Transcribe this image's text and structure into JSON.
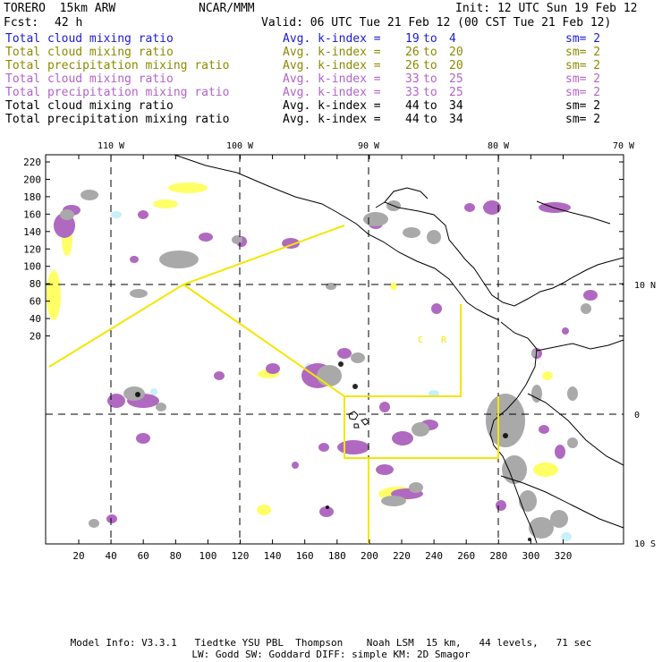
{
  "header": {
    "title": "TORERO  15km ARW",
    "org": "NCAR/MMM",
    "init": "Init: 12 UTC Sun 19 Feb 12",
    "fcst_label": "Fcst:",
    "fcst_value": "42 h",
    "valid": "Valid: 06 UTC Tue 21 Feb 12 (00 CST Tue 21 Feb 12)"
  },
  "colors": {
    "blue": "#1a1ad9",
    "olive": "#8a8a00",
    "violet": "#b463c8",
    "black": "#000000",
    "cloud_gray": "#a9a9a9",
    "precip_violet": "#b069c0",
    "yellow_fill": "#ffff66",
    "cyan_fill": "#c8f0f8",
    "box_line": "#f5e600"
  },
  "legend": [
    {
      "field": "Total cloud mixing ratio",
      "avg": "Avg. k-index =",
      "from": "19",
      "to_word": "to",
      "to": "4",
      "sm": "sm= 2",
      "color": "blue"
    },
    {
      "field": "Total cloud mixing ratio",
      "avg": "Avg. k-index =",
      "from": "26",
      "to_word": "to",
      "to": "20",
      "sm": "sm= 2",
      "color": "olive"
    },
    {
      "field": "Total precipitation mixing ratio",
      "avg": "Avg. k-index =",
      "from": "26",
      "to_word": "to",
      "to": "20",
      "sm": "sm= 2",
      "color": "olive"
    },
    {
      "field": "Total cloud mixing ratio",
      "avg": "Avg. k-index =",
      "from": "33",
      "to_word": "to",
      "to": "25",
      "sm": "sm= 2",
      "color": "violet"
    },
    {
      "field": "Total precipitation mixing ratio",
      "avg": "Avg. k-index =",
      "from": "33",
      "to_word": "to",
      "to": "25",
      "sm": "sm= 2",
      "color": "violet"
    },
    {
      "field": "Total cloud mixing ratio",
      "avg": "Avg. k-index =",
      "from": "44",
      "to_word": "to",
      "to": "34",
      "sm": "sm= 2",
      "color": "black"
    },
    {
      "field": "Total precipitation mixing ratio",
      "avg": "Avg. k-index =",
      "from": "44",
      "to_word": "to",
      "to": "34",
      "sm": "sm= 2",
      "color": "black"
    }
  ],
  "map": {
    "lon_labels": [
      "110 W",
      "100 W",
      "90 W",
      "80 W",
      "70 W"
    ],
    "lat_labels": [
      "10 N",
      "0",
      "10 S"
    ],
    "y_ticks": [
      "220",
      "200",
      "180",
      "160",
      "140",
      "120",
      "100",
      "80",
      "60",
      "40",
      "20"
    ],
    "x_ticks": [
      "20",
      "40",
      "60",
      "80",
      "100",
      "120",
      "140",
      "160",
      "180",
      "200",
      "220",
      "240",
      "260",
      "280",
      "300",
      "320"
    ],
    "region_letters": [
      "C",
      "R"
    ]
  },
  "footer": {
    "line1": "Model Info: V3.3.1   Tiedtke YSU PBL  Thompson    Noah LSM  15 km,   44 levels,   71 sec",
    "line2": "LW: Godd SW: Goddard DIFF: simple KM: 2D Smagor"
  }
}
